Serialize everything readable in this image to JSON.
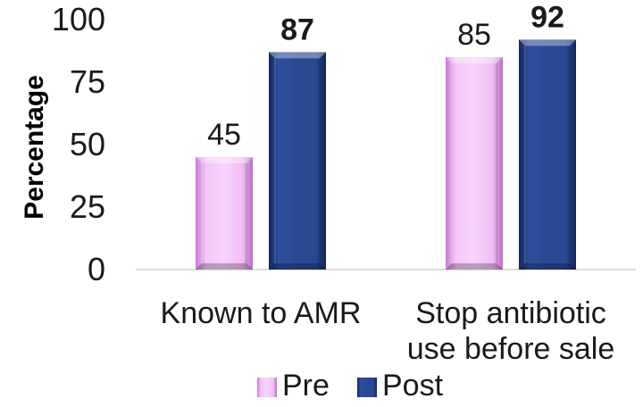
{
  "chart_data": {
    "type": "bar",
    "categories": [
      [
        "Known to AMR"
      ],
      [
        "Stop antibiotic",
        "use before sale"
      ]
    ],
    "series": [
      {
        "name": "Pre",
        "values": [
          45,
          85
        ],
        "color": "#e9a8ee",
        "bold_labels": false
      },
      {
        "name": "Post",
        "values": [
          87,
          92
        ],
        "color": "#243f86",
        "bold_labels": true
      }
    ],
    "ylabel": "Percentage",
    "ylim": [
      0,
      100
    ],
    "yticks": [
      0,
      25,
      50,
      75,
      100
    ],
    "grid": false,
    "legend": "bottom"
  }
}
